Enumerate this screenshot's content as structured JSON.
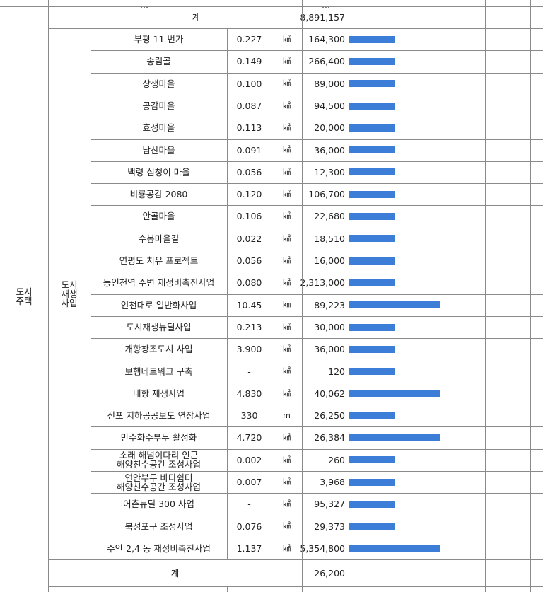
{
  "top_row": {
    "label": "계",
    "value": "8,891,157"
  },
  "top_stub": {
    "left": "…",
    "right": "…"
  },
  "category": "도시\n주택",
  "subcategory": "도시\n재생\n사업",
  "rows": [
    {
      "name": "부평 11 번가",
      "area": "0.227",
      "unit": "㎢",
      "value": "164,300",
      "bar": 1
    },
    {
      "name": "송림골",
      "area": "0.149",
      "unit": "㎢",
      "value": "266,400",
      "bar": 1
    },
    {
      "name": "상생마을",
      "area": "0.100",
      "unit": "㎢",
      "value": "89,000",
      "bar": 1
    },
    {
      "name": "공감마을",
      "area": "0.087",
      "unit": "㎢",
      "value": "94,500",
      "bar": 1
    },
    {
      "name": "효성마을",
      "area": "0.113",
      "unit": "㎢",
      "value": "20,000",
      "bar": 1
    },
    {
      "name": "남산마을",
      "area": "0.091",
      "unit": "㎢",
      "value": "36,000",
      "bar": 1
    },
    {
      "name": "백령 심청이 마을",
      "area": "0.056",
      "unit": "㎢",
      "value": "12,300",
      "bar": 1
    },
    {
      "name": "비룡공감 2080",
      "area": "0.120",
      "unit": "㎢",
      "value": "106,700",
      "bar": 1
    },
    {
      "name": "안골마을",
      "area": "0.106",
      "unit": "㎢",
      "value": "22,680",
      "bar": 1
    },
    {
      "name": "수봉마을길",
      "area": "0.022",
      "unit": "㎢",
      "value": "18,510",
      "bar": 1
    },
    {
      "name": "연평도 치유 프로젝트",
      "area": "0.056",
      "unit": "㎢",
      "value": "16,000",
      "bar": 1
    },
    {
      "name": "동인천역 주변 재정비촉진사업",
      "area": "0.080",
      "unit": "㎢",
      "value": "2,313,000",
      "bar": 1
    },
    {
      "name": "인천대로 일반화사업",
      "area": "10.45",
      "unit": "㎞",
      "value": "89,223",
      "bar": 2
    },
    {
      "name": "도시재생뉴딜사업",
      "area": "0.213",
      "unit": "㎢",
      "value": "30,000",
      "bar": 1
    },
    {
      "name": "개항창조도시 사업",
      "area": "3.900",
      "unit": "㎢",
      "value": "36,000",
      "bar": 1
    },
    {
      "name": "보행네트워크 구축",
      "area": "-",
      "unit": "㎢",
      "value": "120",
      "bar": 1
    },
    {
      "name": "내항 재생사업",
      "area": "4.830",
      "unit": "㎢",
      "value": "40,062",
      "bar": 2
    },
    {
      "name": "신포 지하공공보도 연장사업",
      "area": "330",
      "unit": "m",
      "value": "26,250",
      "bar": 1
    },
    {
      "name": "만수화수부두 활성화",
      "area": "4.720",
      "unit": "㎢",
      "value": "26,384",
      "bar": 2
    },
    {
      "name": "소래 해넘이다리 인근\n해양친수공간 조성사업",
      "area": "0.002",
      "unit": "㎢",
      "value": "260",
      "bar": 1
    },
    {
      "name": "연안부두 바다쉼터\n해양친수공간 조성사업",
      "area": "0.007",
      "unit": "㎢",
      "value": "3,968",
      "bar": 1
    },
    {
      "name": "어촌뉴딜 300 사업",
      "area": "-",
      "unit": "㎢",
      "value": "95,327",
      "bar": 1
    },
    {
      "name": "북성포구 조성사업",
      "area": "0.076",
      "unit": "㎢",
      "value": "29,373",
      "bar": 1
    },
    {
      "name": "주안 2,4 동 재정비촉진사업",
      "area": "1.137",
      "unit": "㎢",
      "value": "5,354,800",
      "bar": 2
    }
  ],
  "bottom_row": {
    "label": "계",
    "value": "26,200"
  },
  "colors": {
    "bar": "#3c7dd8",
    "grid": "#8a8a8a"
  }
}
